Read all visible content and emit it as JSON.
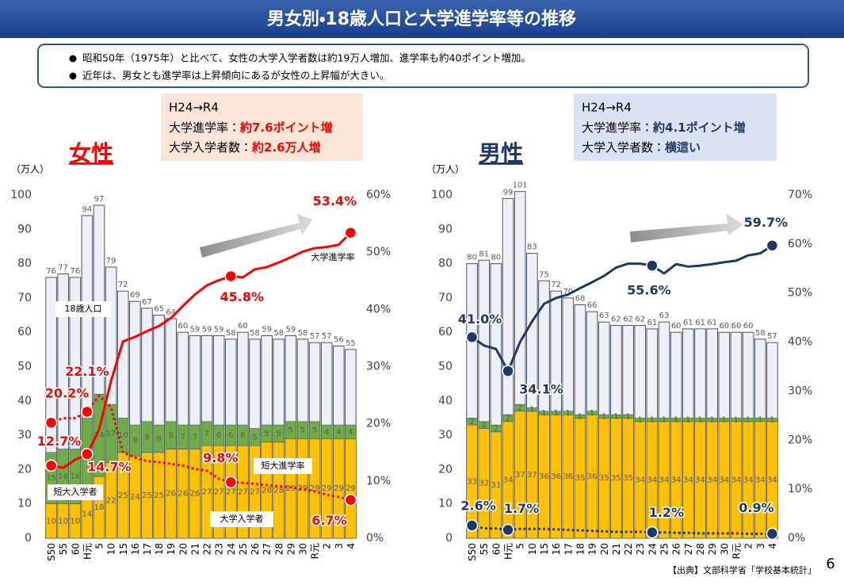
{
  "header": {
    "title": "男女別・18歳人口と大学進学率等の推移"
  },
  "bullets": [
    "昭和50年（1975年）と比べて、女性の大学入学者数は約19万人増加、進学率も約40ポイント増加。",
    "近年は、男女とも進学率は上昇傾向にあるが女性の上昇幅が大きい。"
  ],
  "source": "【出典】文部科学省「学校基本統計」",
  "page": "6",
  "chart_data": [
    {
      "type": "combo",
      "title": "女性",
      "color": "#ff0000",
      "y_label": "（万人）",
      "callout": {
        "title": "H24→R4",
        "lines": [
          {
            "label": "大学進学率：",
            "value": "約7.6ポイント増"
          },
          {
            "label": "大学入学者数：",
            "value": "約2.6万人増"
          }
        ]
      },
      "annotations": [
        "大学進学率"
      ],
      "categories": [
        "S50",
        "55",
        "60",
        "H元",
        "5",
        "10",
        "15",
        "16",
        "17",
        "18",
        "19",
        "20",
        "21",
        "22",
        "23",
        "24",
        "25",
        "26",
        "27",
        "28",
        "29",
        "30",
        "R元",
        "2",
        "3",
        "4"
      ],
      "ylim": [
        0,
        100
      ],
      "yticks": [
        0,
        10,
        20,
        30,
        40,
        50,
        60,
        70,
        80,
        90,
        100
      ],
      "y2lim": [
        0,
        60
      ],
      "y2ticks": [
        {
          "value": 0,
          "label": "0%"
        },
        {
          "value": 10,
          "label": "10%"
        },
        {
          "value": 20,
          "label": "20%"
        },
        {
          "value": 30,
          "label": "30%"
        },
        {
          "value": 40,
          "label": "40%"
        },
        {
          "value": 50,
          "label": "50%"
        },
        {
          "value": 60,
          "label": "60%"
        }
      ],
      "series": [
        {
          "name": "18歳人口",
          "type": "outline",
          "color": "#eef0f5",
          "values": [
            76,
            77,
            76,
            94,
            97,
            79,
            72,
            69,
            67,
            65,
            64,
            60,
            59,
            59,
            59,
            58,
            60,
            58,
            59,
            58,
            59,
            58,
            57,
            57,
            56,
            55
          ]
        },
        {
          "name": "大学入学者",
          "type": "bar",
          "color": "#ffc000",
          "values": [
            10,
            10,
            10,
            14,
            18,
            22,
            25,
            24,
            25,
            25,
            26,
            26,
            26,
            27,
            27,
            27,
            27,
            27,
            28,
            28,
            29,
            29,
            29,
            29,
            29,
            29
          ]
        },
        {
          "name": "短大入学者",
          "type": "bar",
          "color": "#70ad47",
          "values": [
            15,
            16,
            16,
            21,
            24,
            17,
            10,
            9,
            9,
            8,
            8,
            7,
            7,
            7,
            6,
            6,
            6,
            5,
            5,
            5,
            5,
            5,
            5,
            4,
            4,
            4
          ]
        },
        {
          "name": "大学進学率",
          "type": "line",
          "axis": "y2",
          "line_style": "solid",
          "color": "#ff0000",
          "values": [
            12.7,
            12.3,
            13.7,
            14.7,
            19.0,
            27.5,
            34.4,
            35.2,
            36.2,
            37.1,
            38.5,
            40.6,
            42.6,
            44.2,
            45.1,
            45.8,
            45.6,
            47.0,
            47.4,
            48.2,
            49.1,
            50.1,
            50.7,
            50.9,
            51.3,
            53.4
          ],
          "value_labels": [
            "12.7%",
            null,
            null,
            "14.7%",
            null,
            null,
            null,
            null,
            null,
            null,
            null,
            null,
            null,
            null,
            null,
            "45.8%",
            null,
            null,
            null,
            null,
            null,
            null,
            null,
            null,
            null,
            "53.4%"
          ]
        },
        {
          "name": "短大進学率",
          "type": "line",
          "axis": "y2",
          "line_style": "dotted",
          "color": "#ff0000",
          "values": [
            20.2,
            21.0,
            21.0,
            22.1,
            24.9,
            22.9,
            15.0,
            14.1,
            13.5,
            13.3,
            13.0,
            12.7,
            12.1,
            11.8,
            10.4,
            9.8,
            9.7,
            9.5,
            9.3,
            9.1,
            8.9,
            8.6,
            8.2,
            7.6,
            7.2,
            6.7
          ],
          "value_labels": [
            "20.2%",
            null,
            null,
            "22.1%",
            null,
            null,
            null,
            null,
            null,
            null,
            null,
            null,
            null,
            null,
            null,
            "9.8%",
            null,
            null,
            null,
            null,
            null,
            null,
            null,
            null,
            null,
            "6.7%"
          ]
        }
      ]
    },
    {
      "type": "combo",
      "title": "男性",
      "color": "#1f3864",
      "y_label": "（万人）",
      "callout": {
        "title": "H24→R4",
        "lines": [
          {
            "label": "大学進学率：",
            "value": "約4.1ポイント増"
          },
          {
            "label": "大学入学者数：",
            "value": "横這い"
          }
        ]
      },
      "categories": [
        "S50",
        "55",
        "60",
        "H元",
        "5",
        "10",
        "15",
        "16",
        "17",
        "18",
        "19",
        "20",
        "21",
        "22",
        "23",
        "24",
        "25",
        "26",
        "27",
        "28",
        "29",
        "30",
        "R元",
        "2",
        "3",
        "4"
      ],
      "ylim": [
        0,
        100
      ],
      "yticks": [
        0,
        10,
        20,
        30,
        40,
        50,
        60,
        70,
        80,
        90,
        100
      ],
      "y2lim": [
        0,
        70
      ],
      "y2ticks": [
        {
          "value": 0,
          "label": "0%"
        },
        {
          "value": 10,
          "label": "10%"
        },
        {
          "value": 20,
          "label": "20%"
        },
        {
          "value": 30,
          "label": "30%"
        },
        {
          "value": 40,
          "label": "40%"
        },
        {
          "value": 50,
          "label": "50%"
        },
        {
          "value": 60,
          "label": "60%"
        },
        {
          "value": 70,
          "label": "70%"
        }
      ],
      "series": [
        {
          "type": "outline",
          "color": "#eef0f5",
          "values": [
            80,
            81,
            80,
            99,
            101,
            83,
            75,
            72,
            70,
            68,
            66,
            63,
            62,
            62,
            62,
            61,
            63,
            60,
            61,
            61,
            61,
            60,
            60,
            60,
            58,
            57
          ]
        },
        {
          "type": "bar",
          "color": "#ffc000",
          "values": [
            33,
            32,
            31,
            34,
            37,
            37,
            36,
            36,
            36,
            35,
            36,
            35,
            35,
            35,
            34,
            34,
            34,
            34,
            34,
            34,
            34,
            34,
            34,
            34,
            34,
            34
          ]
        },
        {
          "type": "bar",
          "color": "#70ad47",
          "values": [
            2,
            2,
            2,
            2,
            2,
            1,
            1,
            1,
            1,
            1,
            1,
            1,
            1,
            1,
            1,
            1,
            1,
            1,
            1,
            1,
            1,
            1,
            1,
            1,
            1,
            1
          ]
        },
        {
          "type": "line",
          "axis": "y2",
          "line_style": "solid",
          "color": "#1f3864",
          "values": [
            41.0,
            39.3,
            38.6,
            34.1,
            40.0,
            44.2,
            47.8,
            49.0,
            49.7,
            51.0,
            52.2,
            53.5,
            55.2,
            56.0,
            56.0,
            55.6,
            54.0,
            55.9,
            55.4,
            55.6,
            55.9,
            56.3,
            56.6,
            57.7,
            58.1,
            59.7
          ],
          "value_labels": [
            "41.0%",
            null,
            null,
            "34.1%",
            null,
            null,
            null,
            null,
            null,
            null,
            null,
            null,
            null,
            null,
            null,
            "55.6%",
            null,
            null,
            null,
            null,
            null,
            null,
            null,
            null,
            null,
            "59.7%"
          ]
        },
        {
          "type": "line",
          "axis": "y2",
          "line_style": "dotted",
          "color": "#1f3864",
          "values": [
            2.6,
            2.0,
            2.0,
            1.7,
            1.9,
            1.9,
            1.9,
            1.8,
            1.7,
            1.6,
            1.5,
            1.4,
            1.3,
            1.3,
            1.3,
            1.2,
            1.2,
            1.1,
            1.1,
            1.0,
            1.0,
            1.0,
            1.0,
            0.9,
            0.9,
            0.9
          ],
          "value_labels": [
            "2.6%",
            null,
            null,
            "1.7%",
            null,
            null,
            null,
            null,
            null,
            null,
            null,
            null,
            null,
            null,
            null,
            "1.2%",
            null,
            null,
            null,
            null,
            null,
            null,
            null,
            null,
            null,
            "0.9%"
          ]
        }
      ]
    }
  ]
}
